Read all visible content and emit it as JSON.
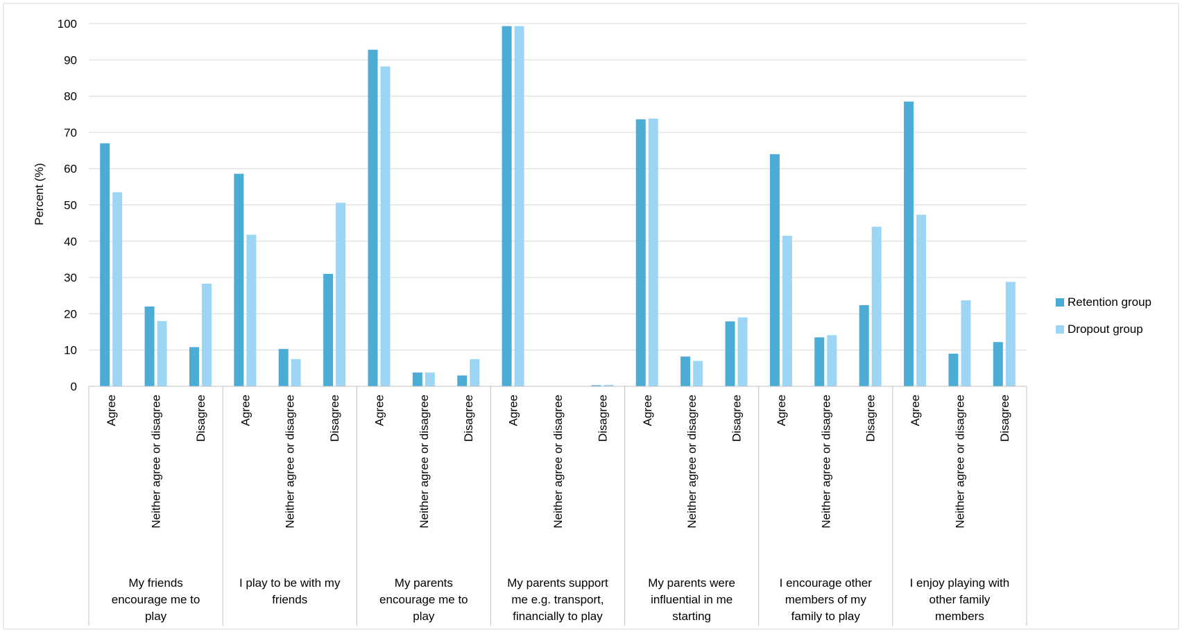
{
  "chart_data": {
    "type": "bar",
    "ylabel": "Percent (%)",
    "ylim": [
      0,
      100
    ],
    "yticks": [
      0,
      10,
      20,
      30,
      40,
      50,
      60,
      70,
      80,
      90,
      100
    ],
    "grid": true,
    "legend_position": "right",
    "subcategories": [
      "Agree",
      "Neither agree or disagree",
      "Disagree"
    ],
    "groups": [
      [
        "My friends",
        "encourage me to",
        "play"
      ],
      [
        "I play to be with my",
        "friends"
      ],
      [
        "My parents",
        "encourage me to",
        "play"
      ],
      [
        "My parents support",
        "me e.g. transport,",
        "financially to play"
      ],
      [
        "My parents were",
        "influential in me",
        "starting"
      ],
      [
        "I encourage other",
        "members of my",
        "family to play"
      ],
      [
        "I enjoy playing with",
        "other family",
        "members"
      ]
    ],
    "series": [
      {
        "name": "Retention group",
        "color": "#4bacd6",
        "values": [
          67,
          22,
          10.8,
          58.6,
          10.3,
          31,
          92.8,
          3.8,
          3,
          99.3,
          0,
          0.3,
          73.6,
          8.2,
          17.9,
          64,
          13.5,
          22.4,
          78.5,
          9,
          12.2
        ]
      },
      {
        "name": "Dropout group",
        "color": "#9dd6f5",
        "values": [
          53.5,
          18,
          28.3,
          41.8,
          7.5,
          50.6,
          88.2,
          3.8,
          7.5,
          99.3,
          0,
          0.4,
          73.8,
          7,
          19,
          41.5,
          14.1,
          44,
          47.3,
          23.7,
          28.8
        ]
      }
    ]
  }
}
